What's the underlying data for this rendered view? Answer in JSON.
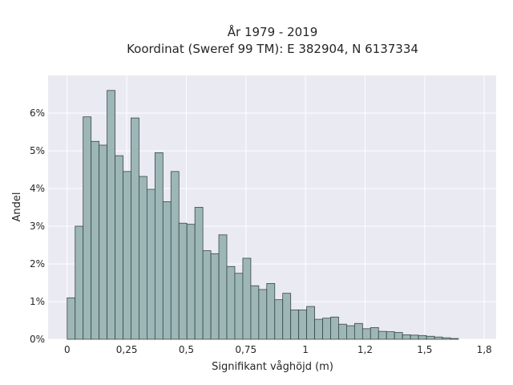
{
  "chart_data": {
    "type": "bar",
    "title_line1": "År 1979 - 2019",
    "title_line2": "Koordinat (Sweref 99 TM): E 382904, N 6137334",
    "xlabel": "Signifikant våghöjd (m)",
    "ylabel": "Andel",
    "xlim": [
      -0.08,
      1.8
    ],
    "ylim": [
      0,
      7.0
    ],
    "x_ticks": [
      0,
      0.25,
      0.5,
      0.75,
      1,
      1.25,
      1.5,
      1.75
    ],
    "x_tick_labels": [
      "0",
      "0,25",
      "0,5",
      "0,75",
      "1",
      "1,2",
      "1,5",
      "1,8"
    ],
    "y_ticks": [
      0,
      1,
      2,
      3,
      4,
      5,
      6
    ],
    "y_tick_labels": [
      "0%",
      "1%",
      "2%",
      "3%",
      "4%",
      "5%",
      "6%"
    ],
    "grid": true,
    "bin_start": 0,
    "bin_width": 0.0335,
    "values": [
      1.1,
      3.0,
      5.9,
      5.25,
      5.15,
      6.6,
      4.87,
      4.45,
      5.87,
      4.32,
      3.98,
      4.95,
      3.65,
      4.45,
      3.08,
      3.05,
      3.5,
      2.35,
      2.27,
      2.77,
      1.93,
      1.75,
      2.15,
      1.42,
      1.32,
      1.48,
      1.05,
      1.22,
      0.78,
      0.78,
      0.87,
      0.53,
      0.56,
      0.59,
      0.4,
      0.36,
      0.42,
      0.28,
      0.31,
      0.21,
      0.2,
      0.18,
      0.12,
      0.11,
      0.1,
      0.08,
      0.06,
      0.04,
      0.02
    ]
  },
  "colors": {
    "plot_background": "#eaeaf2",
    "bar_fill": "#9db7b7",
    "bar_edge": "#3a4646",
    "text": "#262626"
  }
}
